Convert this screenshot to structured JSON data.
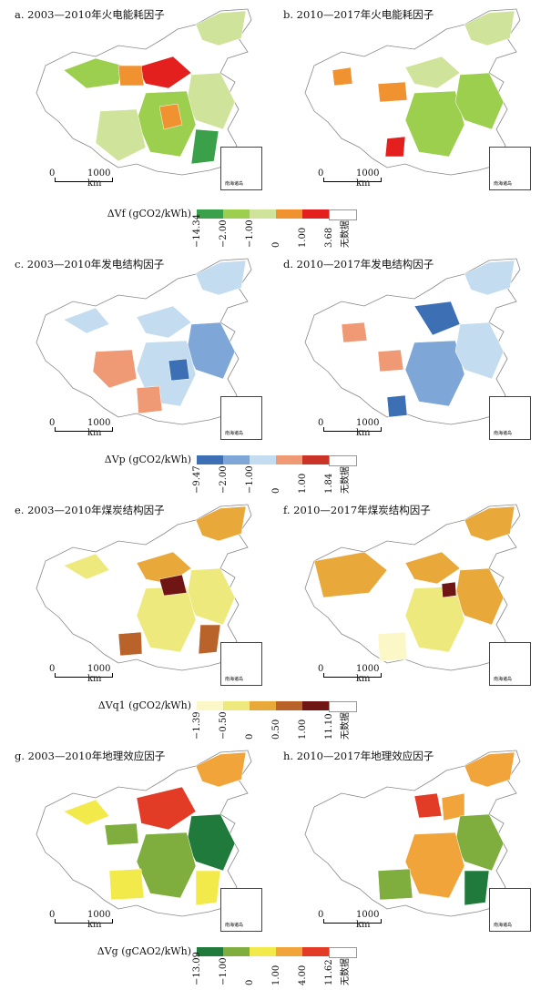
{
  "panels": [
    {
      "title": "a. 2003—2010年火电能耗因子"
    },
    {
      "title": "b. 2010—2017年火电能耗因子"
    },
    {
      "title": "c. 2003—2010年发电结构因子"
    },
    {
      "title": "d. 2010—2017年发电结构因子"
    },
    {
      "title": "e. 2003—2010年煤炭结构因子"
    },
    {
      "title": "f. 2010—2017年煤炭结构因子"
    },
    {
      "title": "g. 2003—2010年地理效应因子"
    },
    {
      "title": "h. 2010—2017年地理效应因子"
    }
  ],
  "scale": {
    "zero": "0",
    "km": "1000 km"
  },
  "inset": {
    "label": "南海诸岛"
  },
  "legends": [
    {
      "title": "ΔVf (gCO2/kWh)",
      "colors": [
        "#3aa04a",
        "#9ccf4e",
        "#cfe49a",
        "#f0922f",
        "#e3201e",
        "#ffffff"
      ],
      "ticks": [
        "−14.34",
        "−2.00",
        "−1.00",
        "0",
        "1.00",
        "3.68",
        "无数据"
      ]
    },
    {
      "title": "ΔVp (gCO2/kWh)",
      "colors": [
        "#3c6fb3",
        "#7ea6d6",
        "#c4dcef",
        "#ef9a75",
        "#c93427",
        "#ffffff"
      ],
      "ticks": [
        "−9.47",
        "−2.00",
        "−1.00",
        "0",
        "1.00",
        "1.84",
        "无数据"
      ]
    },
    {
      "title": "ΔVq1 (gCO2/kWh)",
      "colors": [
        "#fbf7c6",
        "#ede97d",
        "#e9a83a",
        "#b9632b",
        "#6f1514",
        "#ffffff"
      ],
      "ticks": [
        "−1.39",
        "−0.50",
        "0",
        "0.50",
        "1.00",
        "11.10",
        "无数据"
      ]
    },
    {
      "title": "ΔVg (gCAO2/kWh)",
      "colors": [
        "#1f7a3c",
        "#7fae3e",
        "#f2ea4a",
        "#f1a43a",
        "#e23b26",
        "#ffffff"
      ],
      "ticks": [
        "−13.09",
        "−1.00",
        "0",
        "1.00",
        "4.00",
        "11.62",
        "无数据"
      ]
    }
  ]
}
